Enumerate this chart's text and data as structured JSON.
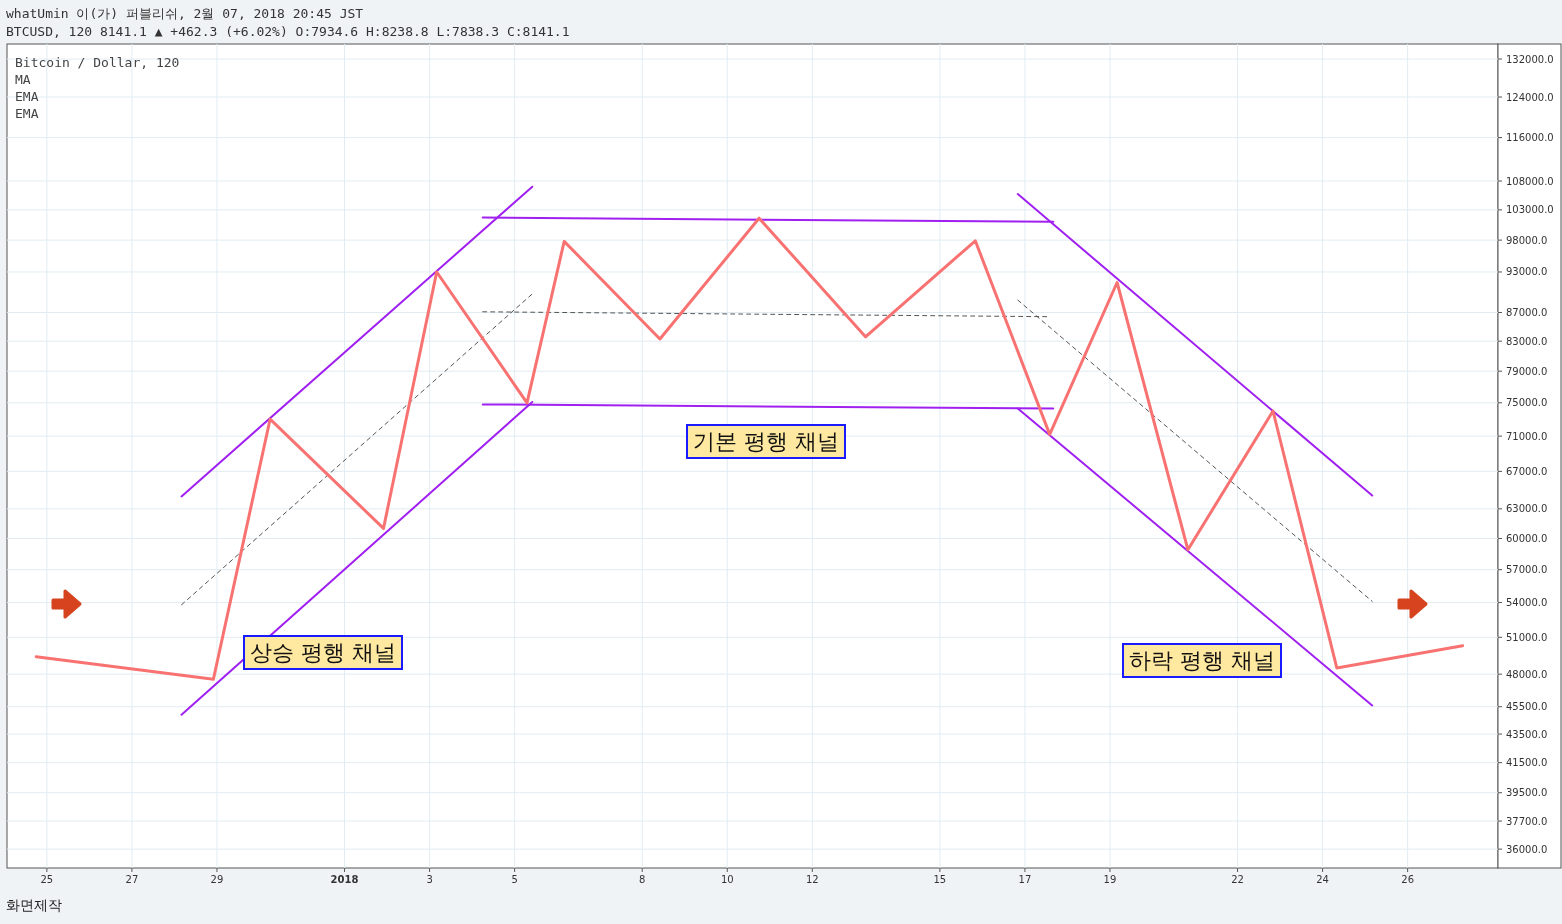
{
  "chart_data": {
    "type": "line",
    "title": "whatUmin 이(가) 퍼블리쉬, 2월 07, 2018 20:45 JST",
    "subtitle": "BTCUSD, 120 8141.1 ▲ +462.3 (+6.02%) O:7934.6 H:8238.8 L:7838.3 C:8141.1",
    "annotations": [
      "Bitcoin / Dollar, 120",
      "MA",
      "EMA",
      "EMA",
      "화면제작",
      "상승 평행 채널",
      "기본 평행 채널",
      "하락 평행 채널"
    ],
    "log": "y",
    "grid": true,
    "xlim": [
      "2017-12-24T01:30",
      "2018-01-28T03:00"
    ],
    "xticks": [
      {
        "value": "2017-12-25",
        "label": "25"
      },
      {
        "value": "2017-12-27",
        "label": "27"
      },
      {
        "value": "2017-12-29",
        "label": "29"
      },
      {
        "value": "2018-01-01",
        "label": "2018"
      },
      {
        "value": "2018-01-03",
        "label": "3"
      },
      {
        "value": "2018-01-05",
        "label": "5"
      },
      {
        "value": "2018-01-08",
        "label": "8"
      },
      {
        "value": "2018-01-10",
        "label": "10"
      },
      {
        "value": "2018-01-12",
        "label": "12"
      },
      {
        "value": "2018-01-15",
        "label": "15"
      },
      {
        "value": "2018-01-17",
        "label": "17"
      },
      {
        "value": "2018-01-19",
        "label": "19"
      },
      {
        "value": "2018-01-22",
        "label": "22"
      },
      {
        "value": "2018-01-24",
        "label": "24"
      },
      {
        "value": "2018-01-26",
        "label": "26"
      }
    ],
    "ylim": [
      34900,
      135300
    ],
    "yticks": [
      {
        "value": 132000,
        "label": "132000.0"
      },
      {
        "value": 124000,
        "label": "124000.0"
      },
      {
        "value": 116000,
        "label": "116000.0"
      },
      {
        "value": 108000,
        "label": "108000.0"
      },
      {
        "value": 103000,
        "label": "103000.0"
      },
      {
        "value": 98000,
        "label": "98000.0"
      },
      {
        "value": 93000,
        "label": "93000.0"
      },
      {
        "value": 87000,
        "label": "87000.0"
      },
      {
        "value": 83000,
        "label": "83000.0"
      },
      {
        "value": 79000,
        "label": "79000.0"
      },
      {
        "value": 75000,
        "label": "75000.0"
      },
      {
        "value": 71000,
        "label": "71000.0"
      },
      {
        "value": 67000,
        "label": "67000.0"
      },
      {
        "value": 63000,
        "label": "63000.0"
      },
      {
        "value": 60000,
        "label": "60000.0"
      },
      {
        "value": 57000,
        "label": "57000.0"
      },
      {
        "value": 54000,
        "label": "54000.0"
      },
      {
        "value": 51000,
        "label": "51000.0"
      },
      {
        "value": 48000,
        "label": "48000.0"
      },
      {
        "value": 45500,
        "label": "45500.0"
      },
      {
        "value": 43500,
        "label": "43500.0"
      },
      {
        "value": 41500,
        "label": "41500.0"
      },
      {
        "value": 39500,
        "label": "39500.0"
      },
      {
        "value": 37700,
        "label": "37700.0"
      },
      {
        "value": 36000,
        "label": "36000.0"
      }
    ],
    "series": [
      {
        "color": "#a020f0",
        "x": [
          "2017-12-28T04:00",
          "2018-01-05T10:00"
        ],
        "values": [
          64300,
          107000
        ]
      },
      {
        "color": "#a020f0",
        "x": [
          "2017-12-28T04:00",
          "2018-01-05T10:00"
        ],
        "values": [
          44900,
          75100
        ]
      },
      {
        "color": "#a020f0",
        "x": [
          "2018-01-04T06:00",
          "2018-01-17T16:00"
        ],
        "values": [
          101700,
          101000
        ]
      },
      {
        "color": "#a020f0",
        "x": [
          "2018-01-04T06:00",
          "2018-01-17T16:00"
        ],
        "values": [
          74800,
          74300
        ]
      },
      {
        "color": "#a020f0",
        "x": [
          "2018-01-16T20:00",
          "2018-01-25T04:00"
        ],
        "values": [
          105700,
          64400
        ]
      },
      {
        "color": "#a020f0",
        "x": [
          "2018-01-16T20:00",
          "2018-01-25T04:00"
        ],
        "values": [
          74300,
          45600
        ]
      },
      {
        "color": "#555555",
        "line_style": "dashed",
        "x": [
          "2017-12-28T04:00",
          "2018-01-05T10:00"
        ],
        "values": [
          53800,
          89700
        ]
      },
      {
        "color": "#555555",
        "line_style": "dashed",
        "x": [
          "2018-01-04T06:00",
          "2018-01-17T14:00"
        ],
        "values": [
          87100,
          86400
        ]
      },
      {
        "color": "#555555",
        "line_style": "dashed",
        "x": [
          "2018-01-16T20:00",
          "2018-01-25T04:00"
        ],
        "values": [
          88800,
          54100
        ]
      },
      {
        "color": "#f87272",
        "x": [
          "2017-12-24T18:00",
          "2017-12-28T22:00",
          "2017-12-30T06:00",
          "2018-01-01T22:00",
          "2018-01-03T04:00",
          "2018-01-05T07:00",
          "2018-01-06T04:00",
          "2018-01-08T10:00",
          "2018-01-10T18:00",
          "2018-01-13T06:00",
          "2018-01-15T20:00",
          "2018-01-17T14:00",
          "2018-01-19T04:00",
          "2018-01-20T20:00",
          "2018-01-22T20:00",
          "2018-01-24T08:00",
          "2018-01-27T07:00"
        ],
        "values": [
          49400,
          47600,
          73000,
          61000,
          93000,
          75000,
          97800,
          83300,
          101600,
          83600,
          97900,
          71200,
          91400,
          58900,
          74000,
          48500,
          50300
        ]
      }
    ]
  }
}
